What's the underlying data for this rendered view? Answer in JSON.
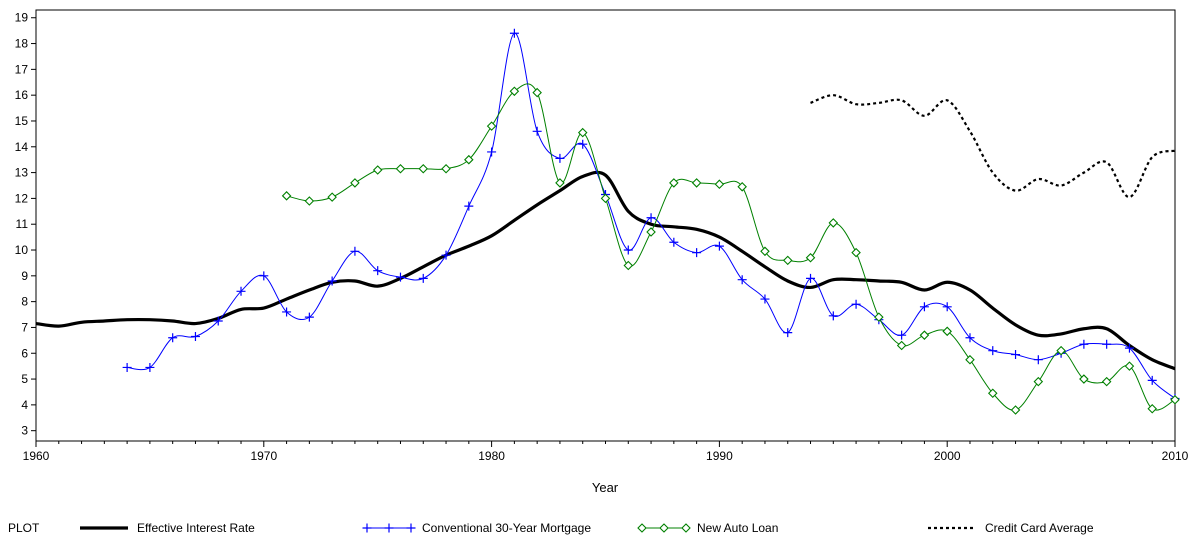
{
  "chart_data": {
    "type": "line",
    "xlabel": "Year",
    "ylabel": "",
    "xlim": [
      1960,
      2010
    ],
    "ylim": [
      2.6,
      19.3
    ],
    "xticks": [
      1960,
      1970,
      1980,
      1990,
      2000,
      2010
    ],
    "yticks": [
      3,
      4,
      5,
      6,
      7,
      8,
      9,
      10,
      11,
      12,
      13,
      14,
      15,
      16,
      17,
      18,
      19
    ],
    "grid": false,
    "legend_title": "PLOT",
    "legend_position": "bottom",
    "series": [
      {
        "name": "Effective Interest Rate",
        "color": "#000000",
        "marker": "none",
        "style": "solid-thick",
        "x": [
          1960,
          1961,
          1962,
          1963,
          1964,
          1965,
          1966,
          1967,
          1968,
          1969,
          1970,
          1971,
          1972,
          1973,
          1974,
          1975,
          1976,
          1977,
          1978,
          1979,
          1980,
          1981,
          1982,
          1983,
          1984,
          1985,
          1986,
          1987,
          1988,
          1989,
          1990,
          1991,
          1992,
          1993,
          1994,
          1995,
          1996,
          1997,
          1998,
          1999,
          2000,
          2001,
          2002,
          2003,
          2004,
          2005,
          2006,
          2007,
          2008,
          2009,
          2010
        ],
        "y": [
          7.15,
          7.05,
          7.2,
          7.25,
          7.3,
          7.3,
          7.25,
          7.15,
          7.35,
          7.7,
          7.75,
          8.1,
          8.45,
          8.75,
          8.8,
          8.6,
          8.9,
          9.35,
          9.8,
          10.15,
          10.55,
          11.15,
          11.75,
          12.3,
          12.85,
          12.9,
          11.5,
          11.0,
          10.9,
          10.8,
          10.5,
          9.95,
          9.35,
          8.8,
          8.55,
          8.85,
          8.85,
          8.8,
          8.75,
          8.45,
          8.75,
          8.45,
          7.75,
          7.1,
          6.7,
          6.75,
          6.95,
          6.95,
          6.3,
          5.75,
          5.4
        ]
      },
      {
        "name": "Conventional 30-Year Mortgage",
        "color": "#0000ff",
        "marker": "plus",
        "style": "solid-thin",
        "x": [
          1964,
          1965,
          1966,
          1967,
          1968,
          1969,
          1970,
          1971,
          1972,
          1973,
          1974,
          1975,
          1976,
          1977,
          1978,
          1979,
          1980,
          1981,
          1982,
          1983,
          1984,
          1985,
          1986,
          1987,
          1988,
          1989,
          1990,
          1991,
          1992,
          1993,
          1994,
          1995,
          1996,
          1997,
          1998,
          1999,
          2000,
          2001,
          2002,
          2003,
          2004,
          2005,
          2006,
          2007,
          2008,
          2009,
          2010
        ],
        "y": [
          5.45,
          5.45,
          6.6,
          6.65,
          7.25,
          8.4,
          9.0,
          7.6,
          7.4,
          8.8,
          9.95,
          9.2,
          8.95,
          8.9,
          9.8,
          11.7,
          13.8,
          18.4,
          14.6,
          13.55,
          14.1,
          12.15,
          10.0,
          11.25,
          10.3,
          9.9,
          10.15,
          8.85,
          8.1,
          6.8,
          8.9,
          7.45,
          7.9,
          7.3,
          6.7,
          7.8,
          7.8,
          6.6,
          6.1,
          5.95,
          5.75,
          6.0,
          6.35,
          6.35,
          6.2,
          4.95,
          4.25
        ]
      },
      {
        "name": "New Auto Loan",
        "color": "#008000",
        "marker": "diamond",
        "style": "solid-thin",
        "x": [
          1971,
          1972,
          1973,
          1974,
          1975,
          1976,
          1977,
          1978,
          1979,
          1980,
          1981,
          1982,
          1983,
          1984,
          1985,
          1986,
          1987,
          1988,
          1989,
          1990,
          1991,
          1992,
          1993,
          1994,
          1995,
          1996,
          1997,
          1998,
          1999,
          2000,
          2001,
          2002,
          2003,
          2004,
          2005,
          2006,
          2007,
          2008,
          2009,
          2010
        ],
        "y": [
          12.1,
          11.9,
          12.05,
          12.6,
          13.1,
          13.15,
          13.15,
          13.15,
          13.5,
          14.8,
          16.15,
          16.1,
          12.6,
          14.55,
          12.0,
          9.4,
          10.7,
          12.6,
          12.6,
          12.55,
          12.45,
          9.95,
          9.6,
          9.7,
          11.05,
          9.9,
          7.4,
          6.3,
          6.7,
          6.85,
          5.75,
          4.45,
          3.8,
          4.9,
          6.1,
          5.0,
          4.9,
          5.5,
          3.85,
          4.2
        ]
      },
      {
        "name": "Credit Card Average",
        "color": "#000000",
        "marker": "none",
        "style": "dashed",
        "x": [
          1994,
          1995,
          1996,
          1997,
          1998,
          1999,
          2000,
          2001,
          2002,
          2003,
          2004,
          2005,
          2006,
          2007,
          2008,
          2009,
          2010
        ],
        "y": [
          15.7,
          16.0,
          15.65,
          15.7,
          15.8,
          15.2,
          15.8,
          14.6,
          13.0,
          12.3,
          12.75,
          12.5,
          13.0,
          13.4,
          12.05,
          13.6,
          13.85
        ]
      }
    ]
  }
}
